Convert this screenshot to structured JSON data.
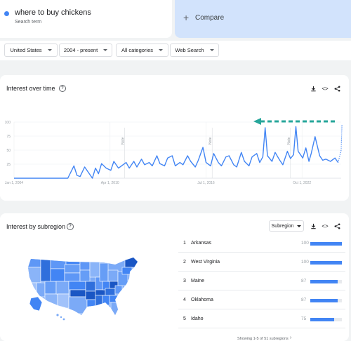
{
  "search": {
    "term": "where to buy chickens",
    "term_type": "Search term",
    "compare_label": "Compare",
    "dot_color": "#4285f4"
  },
  "filters": [
    {
      "label": "United States"
    },
    {
      "label": "2004 - present"
    },
    {
      "label": "All categories"
    },
    {
      "label": "Web Search"
    }
  ],
  "interest_over_time": {
    "title": "Interest over time",
    "toolbar_icons": [
      "download-icon",
      "embed-icon",
      "share-icon"
    ],
    "note_label": "Note"
  },
  "chart_data": {
    "type": "line",
    "title": "Interest over time",
    "xlabel": "",
    "ylabel": "",
    "ylim": [
      0,
      100
    ],
    "yticks": [
      25,
      50,
      75,
      100
    ],
    "x_tick_labels": [
      "Jan 1, 2004",
      "Apr 1, 2010",
      "Jul 1, 2016",
      "Oct 1, 2022"
    ],
    "x_tick_years": [
      2004,
      2010.25,
      2016.5,
      2022.75
    ],
    "x_range": [
      2004,
      2025.3
    ],
    "note_years": [
      2011.2,
      2016.9,
      2022.0
    ],
    "grid": true,
    "series": [
      {
        "color": "#4285f4",
        "x": [
          2004.0,
          2006.0,
          2007.5,
          2007.9,
          2008.1,
          2008.3,
          2008.6,
          2009.1,
          2009.3,
          2009.5,
          2009.7,
          2010.0,
          2010.3,
          2010.5,
          2010.8,
          2011.0,
          2011.3,
          2011.5,
          2011.8,
          2012.0,
          2012.3,
          2012.5,
          2012.8,
          2013.0,
          2013.3,
          2013.5,
          2013.8,
          2014.0,
          2014.3,
          2014.5,
          2014.8,
          2015.0,
          2015.3,
          2015.5,
          2015.8,
          2016.0,
          2016.3,
          2016.5,
          2016.8,
          2017.0,
          2017.3,
          2017.5,
          2017.8,
          2018.0,
          2018.3,
          2018.5,
          2018.8,
          2019.0,
          2019.3,
          2019.5,
          2019.8,
          2020.0,
          2020.2,
          2020.35,
          2020.5,
          2020.8,
          2021.0,
          2021.3,
          2021.5,
          2021.8,
          2022.0,
          2022.2,
          2022.35,
          2022.5,
          2022.8,
          2023.0,
          2023.2,
          2023.35,
          2023.6,
          2023.9,
          2024.1,
          2024.3,
          2024.6,
          2024.9,
          2025.1,
          2025.3
        ],
        "values": [
          0,
          0,
          0,
          22,
          5,
          3,
          20,
          0,
          18,
          8,
          26,
          18,
          14,
          30,
          18,
          22,
          28,
          18,
          30,
          20,
          34,
          24,
          28,
          22,
          40,
          26,
          22,
          36,
          40,
          22,
          28,
          24,
          40,
          30,
          20,
          32,
          55,
          28,
          22,
          44,
          28,
          22,
          38,
          40,
          24,
          20,
          46,
          30,
          22,
          38,
          44,
          28,
          38,
          90,
          40,
          30,
          46,
          32,
          24,
          48,
          35,
          42,
          92,
          48,
          36,
          54,
          30,
          44,
          74,
          40,
          32,
          34,
          30,
          36,
          28,
          50
        ]
      }
    ]
  },
  "interest_by_subregion": {
    "title": "Interest by subregion",
    "dropdown_label": "Subregion",
    "regions": [
      {
        "rank": "1",
        "name": "Arkansas",
        "value": 100
      },
      {
        "rank": "2",
        "name": "West Virginia",
        "value": 100
      },
      {
        "rank": "3",
        "name": "Maine",
        "value": 87
      },
      {
        "rank": "4",
        "name": "Oklahoma",
        "value": 87
      },
      {
        "rank": "5",
        "name": "Idaho",
        "value": 75
      }
    ],
    "pagination": "Showing 1-5 of 51 subregions"
  }
}
